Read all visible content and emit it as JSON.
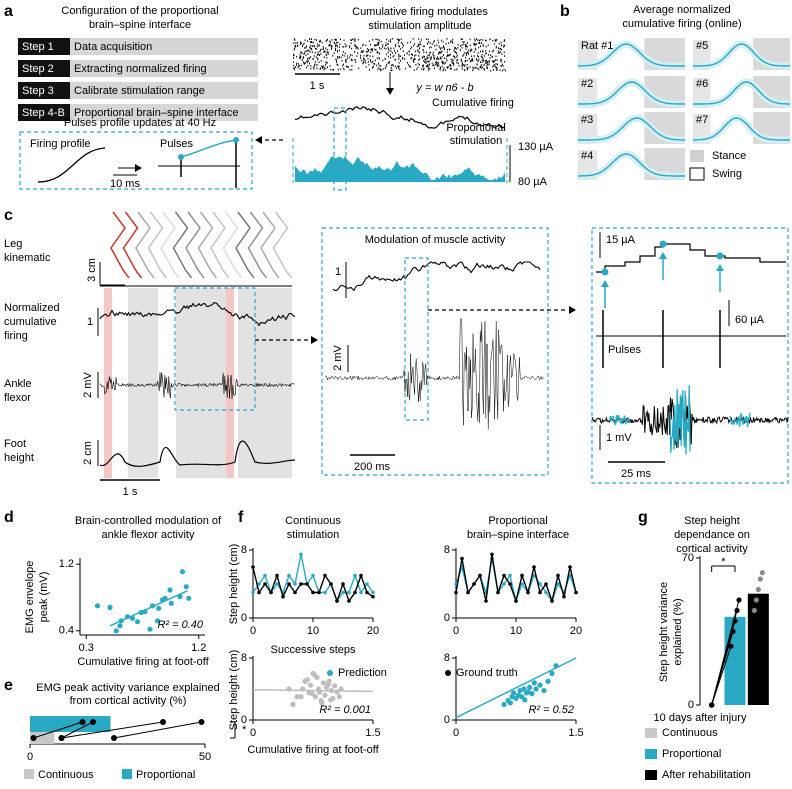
{
  "figure": {
    "a": {
      "label": "a",
      "title": [
        "Configuration of the proportional",
        "brain–spine interface"
      ],
      "steps": [
        {
          "step": "Step 1",
          "text": "Data acquisition"
        },
        {
          "step": "Step 2",
          "text": "Extracting normalized firing"
        },
        {
          "step": "Step 3",
          "text": "Calibrate stimulation range"
        },
        {
          "step": "Step 4-B",
          "text": "Proportional brain–spine interface"
        }
      ],
      "update_note": "Pulses profile updates at 40 Hz",
      "firing_profile": "Firing profile",
      "pulses": "Pulses",
      "time_scale": "10 ms",
      "raster_title": [
        "Cumulative firing modulates",
        "stimulation amplitude"
      ],
      "raster_scale": "1 s",
      "equation": "y = w n6 - b",
      "cumulative_firing": "Cumulative firing",
      "stimulation": [
        "Proportional",
        "stimulation"
      ],
      "amp_high": "130 µA",
      "amp_low": "80 µA"
    },
    "b": {
      "label": "b",
      "title": [
        "Average normalized",
        "cumulative firing (online)"
      ],
      "rats": [
        "Rat #1",
        "#2",
        "#3",
        "#4",
        "#5",
        "#6",
        "#7"
      ],
      "legend": [
        "Stance",
        "Swing"
      ]
    },
    "c": {
      "label": "c",
      "leg_label": [
        "Leg",
        "kinematic"
      ],
      "leg_scale": "3 cm",
      "firing_label": [
        "Normalized",
        "cumulative",
        "firing"
      ],
      "firing_scale": "1",
      "emg_label": [
        "Ankle",
        "flexor"
      ],
      "emg_scale": "2 mV",
      "foot_label": [
        "Foot",
        "height"
      ],
      "foot_scale": "2 cm",
      "time_scale": "1 s",
      "zoom_title": "Modulation of muscle activity",
      "zoom_firing_scale": "1",
      "zoom_emg_scale": "2 mV",
      "zoom_time_scale": "200 ms",
      "detail_amp_scale": "15 µA",
      "detail_pulse_scale": "60 µA",
      "detail_pulses": "Pulses",
      "detail_emg_scale": "1 mV",
      "detail_time_scale": "25 ms"
    }
  },
  "chart_data": [
    {
      "type": "scatter",
      "panel": "d",
      "title": [
        "Brain-controlled modulation of",
        "ankle flexor activity"
      ],
      "xlabel": "Cumulative firing at foot-off",
      "ylabel": [
        "EMG envelope",
        "peak (mV)"
      ],
      "xlim": [
        0.25,
        1.25
      ],
      "ylim": [
        0.35,
        1.25
      ],
      "xticks": [
        0.3,
        1.2
      ],
      "yticks": [
        0.4,
        1.2
      ],
      "series": [
        {
          "color": "#29a9c4",
          "x": [
            0.39,
            0.49,
            0.58,
            0.57,
            0.63,
            0.67,
            0.71,
            0.74,
            0.77,
            0.81,
            0.83,
            0.88,
            0.91,
            0.93,
            0.97,
            0.98,
            1.05,
            1.07,
            1.1,
            1.12,
            0.87,
            0.54
          ],
          "values": [
            0.7,
            0.68,
            0.52,
            0.46,
            0.57,
            0.55,
            0.51,
            0.62,
            0.63,
            0.42,
            0.7,
            0.67,
            0.77,
            0.79,
            0.89,
            0.73,
            0.81,
            1.11,
            0.93,
            0.79,
            0.52,
            0.4
          ]
        }
      ],
      "fit": {
        "x": [
          0.49,
          1.11
        ],
        "values": [
          0.46,
          0.88
        ]
      },
      "annotation": "R² = 0.40"
    },
    {
      "type": "paired",
      "panel": "e",
      "title": [
        "EMG peak activity variance explained",
        "from cortical activity (%)"
      ],
      "xlim": [
        0,
        50
      ],
      "xticks": [
        0,
        50
      ],
      "series": [
        {
          "name": "Continuous",
          "color": "#c8c8c8",
          "value": 7,
          "points": [
            1,
            9,
            9,
            24
          ]
        },
        {
          "name": "Proportional",
          "color": "#29a9c4",
          "value": 23,
          "points": [
            15,
            18,
            38,
            49
          ]
        }
      ],
      "annotation": "*"
    },
    {
      "type": "line",
      "panel": "f",
      "title": [
        "Continuous",
        "stimulation"
      ],
      "xlabel": "Successive steps",
      "ylabel": "Step height (cm)",
      "x": [
        0,
        1,
        2,
        3,
        4,
        5,
        6,
        7,
        8,
        9,
        10,
        11,
        12,
        13,
        14,
        15,
        16,
        17,
        18,
        19,
        20
      ],
      "xlim": [
        0,
        20
      ],
      "xticks": [
        0,
        10,
        20
      ],
      "ylim": [
        0,
        8
      ],
      "yticks": [
        0,
        8
      ],
      "series": [
        {
          "name": "Prediction",
          "color": "#29a9c4",
          "values": [
            3,
            4,
            5,
            3,
            4,
            3,
            5,
            4,
            7.5,
            4,
            5,
            3,
            3,
            4,
            2,
            3,
            3,
            5,
            3,
            4,
            3
          ]
        },
        {
          "name": "Ground truth",
          "color": "#000000",
          "values": [
            6,
            3,
            4,
            3,
            5,
            2.5,
            4,
            3,
            4,
            4,
            3,
            3,
            5,
            4,
            2,
            4,
            2,
            3,
            5,
            3,
            2.5
          ]
        }
      ]
    },
    {
      "type": "line",
      "title": [
        "Proportional",
        "brain–spine interface"
      ],
      "x": [
        0,
        1,
        2,
        3,
        4,
        5,
        6,
        7,
        8,
        9,
        10,
        11,
        12,
        13,
        14,
        15,
        16,
        17,
        18,
        19,
        20
      ],
      "xlim": [
        0,
        20
      ],
      "xticks": [
        0,
        10,
        20
      ],
      "ylim": [
        0,
        8
      ],
      "yticks": [
        0,
        8
      ],
      "series": [
        {
          "color": "#29a9c4",
          "values": [
            4,
            6,
            3,
            4,
            5,
            3,
            7,
            3,
            4,
            5,
            2,
            4,
            3,
            5,
            4,
            3,
            2,
            4,
            3,
            5,
            3
          ]
        },
        {
          "color": "#000000",
          "values": [
            3,
            7,
            3,
            4,
            5,
            2,
            7.5,
            3,
            5,
            4,
            2,
            5,
            3,
            6,
            3,
            4,
            2,
            5,
            2.5,
            6,
            3
          ]
        }
      ]
    },
    {
      "type": "scatter",
      "xlabel": "Cumulative firing at foot-off",
      "ylabel": "Step height (cm)",
      "xlim": [
        0,
        1.5
      ],
      "ylim": [
        0,
        8
      ],
      "xticks": [
        0,
        1.5
      ],
      "yticks": [
        0,
        8
      ],
      "series": [
        {
          "color": "#bdbdbd",
          "x": [
            0.5,
            0.6,
            0.62,
            0.65,
            0.7,
            0.72,
            0.75,
            0.78,
            0.8,
            0.82,
            0.85,
            0.88,
            0.9,
            0.92,
            0.95,
            0.98,
            1.0,
            1.02,
            1.05,
            1.1,
            0.55,
            0.68,
            0.74,
            0.86,
            0.94,
            1.08,
            0.45,
            0.77,
            0.83,
            0.97
          ],
          "values": [
            2,
            3,
            4,
            5,
            3.5,
            4.5,
            6,
            3,
            5.5,
            4,
            2.5,
            4.8,
            3.2,
            4.2,
            5,
            3.8,
            2.8,
            4.4,
            3.6,
            4,
            3,
            5.2,
            3.4,
            2.2,
            4.6,
            3,
            4,
            5.8,
            3.6,
            2.6
          ]
        }
      ],
      "fit": {
        "x": [
          0,
          1.5
        ],
        "values": [
          3.9,
          3.7
        ]
      },
      "annotation": "R² = 0.001"
    },
    {
      "type": "scatter",
      "xlim": [
        0,
        1.5
      ],
      "ylim": [
        0,
        8
      ],
      "xticks": [
        0,
        1.5
      ],
      "yticks": [
        0,
        8
      ],
      "series": [
        {
          "color": "#29a9c4",
          "x": [
            0.6,
            0.65,
            0.7,
            0.72,
            0.75,
            0.78,
            0.8,
            0.82,
            0.85,
            0.88,
            0.9,
            0.92,
            0.95,
            1.0,
            1.05,
            1.1,
            1.15,
            1.2,
            1.25,
            0.68,
            0.86,
            0.98
          ],
          "values": [
            2,
            2.5,
            3,
            3.5,
            2.8,
            3.2,
            3.8,
            3,
            4,
            3.5,
            3.6,
            4.2,
            3.4,
            4,
            4.5,
            3.8,
            5,
            6,
            7,
            2.2,
            2.6,
            4.8
          ]
        }
      ],
      "fit": {
        "x": [
          0,
          1.5
        ],
        "values": [
          0.3,
          8
        ]
      },
      "annotation": "R² = 0.52"
    },
    {
      "type": "bar",
      "panel": "g",
      "title": [
        "Step height",
        "dependance on",
        "cortical activity"
      ],
      "ylabel": [
        "Step height variance",
        "explained (%)"
      ],
      "subtitle": "10 days after injury",
      "categories": [
        "Continuous",
        "Proportional",
        "After rehabilitation"
      ],
      "colors": [
        "#c8c8c8",
        "#29a9c4",
        "#000000"
      ],
      "ylim": [
        0,
        70
      ],
      "yticks": [
        0,
        70
      ],
      "values": [
        0,
        42,
        53
      ],
      "points": [
        [
          0,
          0,
          0,
          0,
          0
        ],
        [
          28,
          35,
          40,
          45,
          50
        ],
        [
          45,
          50,
          55,
          60,
          63
        ]
      ],
      "annotation": "*"
    }
  ]
}
